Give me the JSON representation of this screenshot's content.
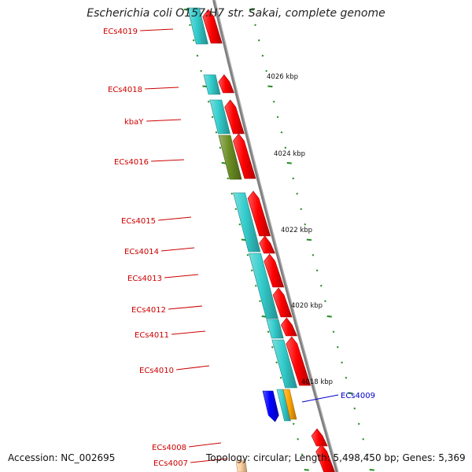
{
  "title": "Escherichia coli O157:H7 str. Sakai, complete genome",
  "footer": {
    "accession": "Accession: NC_002695",
    "topology": "Topology: circular; Length: 5,498,450 bp; Genes: 5,369"
  },
  "colors": {
    "backbone": "#808080",
    "tick": "#228b22",
    "label": "#cc0000",
    "highlight_label": "#0000cc",
    "cds": "#ff0000",
    "gene": "#33cccc",
    "gene_alt": "#6b8e23",
    "blue_gene": "#0000ff",
    "orange_gene": "#ffa500",
    "peach_gene": "#ffd0a0"
  },
  "kbp_labels": [
    "4026 kbp",
    "4024 kbp",
    "4022 kbp",
    "4020 kbp",
    "4018 kbp"
  ],
  "gene_labels": [
    {
      "text": "ECs4019",
      "color": "#cc0000"
    },
    {
      "text": "ECs4018",
      "color": "#cc0000"
    },
    {
      "text": "kbaY",
      "color": "#cc0000"
    },
    {
      "text": "ECs4016",
      "color": "#cc0000"
    },
    {
      "text": "ECs4015",
      "color": "#cc0000"
    },
    {
      "text": "ECs4014",
      "color": "#cc0000"
    },
    {
      "text": "ECs4013",
      "color": "#cc0000"
    },
    {
      "text": "ECs4012",
      "color": "#cc0000"
    },
    {
      "text": "ECs4011",
      "color": "#cc0000"
    },
    {
      "text": "ECs4010",
      "color": "#cc0000"
    },
    {
      "text": "ECs4009",
      "color": "#0000cc"
    },
    {
      "text": "ECs4008",
      "color": "#cc0000"
    },
    {
      "text": "ECs4007",
      "color": "#cc0000"
    }
  ]
}
